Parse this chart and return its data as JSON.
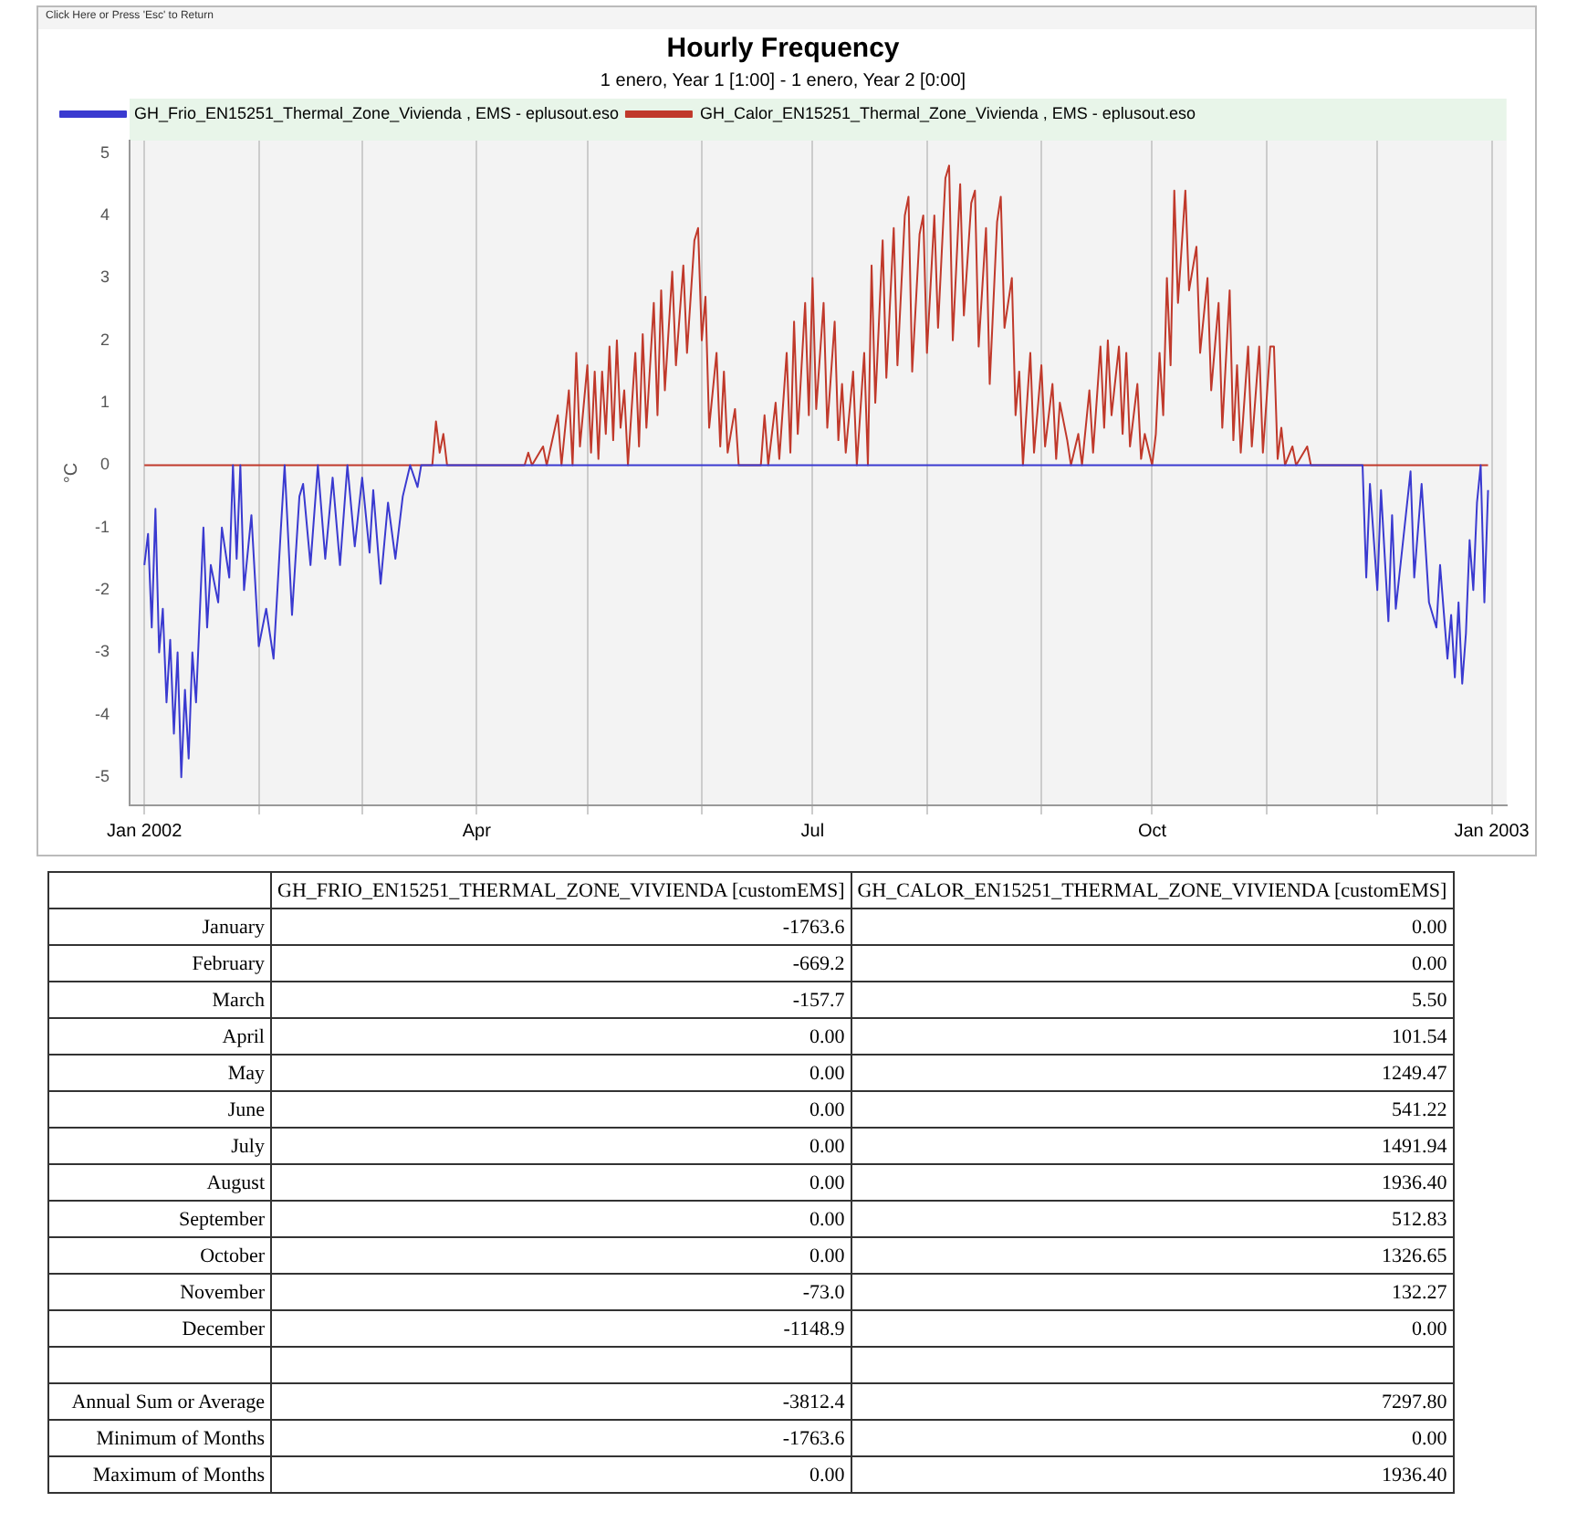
{
  "chart_data": [
    {
      "type": "line",
      "title": "Hourly Frequency",
      "subtitle": "1 enero, Year 1 [1:00] - 1 enero, Year 2 [0:00]",
      "ylabel": "°C",
      "annotations": [
        "Click Here or Press 'Esc' to Return"
      ],
      "xlim": [
        "2001-12-28",
        "2003-01-05"
      ],
      "ylim": [
        -5.45,
        5.2
      ],
      "yticks": [
        -5,
        -4,
        -3,
        -2,
        -1,
        0,
        1,
        2,
        3,
        4,
        5
      ],
      "xticks": [
        {
          "value": "2002-01-01",
          "label": "Jan 2002"
        },
        {
          "value": "2002-02-01",
          "label": null
        },
        {
          "value": "2002-03-01",
          "label": null
        },
        {
          "value": "2002-04-01",
          "label": "Apr"
        },
        {
          "value": "2002-05-01",
          "label": null
        },
        {
          "value": "2002-06-01",
          "label": null
        },
        {
          "value": "2002-07-01",
          "label": "Jul"
        },
        {
          "value": "2002-08-01",
          "label": null
        },
        {
          "value": "2002-09-01",
          "label": null
        },
        {
          "value": "2002-10-01",
          "label": "Oct"
        },
        {
          "value": "2002-11-01",
          "label": null
        },
        {
          "value": "2002-12-01",
          "label": null
        },
        {
          "value": "2003-01-01",
          "label": "Jan 2003"
        }
      ],
      "grid": "x",
      "legend": "top",
      "marker": "none",
      "line_style": "solid",
      "series": [
        {
          "name": "GH_Frio_EN15251_Thermal_Zone_Vivienda , EMS - eplusout.eso",
          "color": "#3a3ad0",
          "x": [
            "2002-01-01",
            "2002-01-02",
            "2002-01-03",
            "2002-01-04",
            "2002-01-05",
            "2002-01-06",
            "2002-01-07",
            "2002-01-08",
            "2002-01-09",
            "2002-01-10",
            "2002-01-11",
            "2002-01-12",
            "2002-01-13",
            "2002-01-14",
            "2002-01-15",
            "2002-01-17",
            "2002-01-18",
            "2002-01-19",
            "2002-01-21",
            "2002-01-22",
            "2002-01-24",
            "2002-01-25",
            "2002-01-26",
            "2002-01-27",
            "2002-01-28",
            "2002-01-30",
            "2002-02-01",
            "2002-02-03",
            "2002-02-05",
            "2002-02-07",
            "2002-02-08",
            "2002-02-10",
            "2002-02-12",
            "2002-02-13",
            "2002-02-15",
            "2002-02-17",
            "2002-02-19",
            "2002-02-21",
            "2002-02-23",
            "2002-02-25",
            "2002-02-27",
            "2002-03-01",
            "2002-03-03",
            "2002-03-04",
            "2002-03-06",
            "2002-03-08",
            "2002-03-10",
            "2002-03-12",
            "2002-03-14",
            "2002-03-16",
            "2002-03-17",
            "2002-11-27",
            "2002-11-28",
            "2002-11-29",
            "2002-12-01",
            "2002-12-02",
            "2002-12-04",
            "2002-12-05",
            "2002-12-06",
            "2002-12-08",
            "2002-12-10",
            "2002-12-11",
            "2002-12-13",
            "2002-12-15",
            "2002-12-17",
            "2002-12-18",
            "2002-12-20",
            "2002-12-21",
            "2002-12-22",
            "2002-12-23",
            "2002-12-24",
            "2002-12-25",
            "2002-12-26",
            "2002-12-27",
            "2002-12-28",
            "2002-12-29",
            "2002-12-30",
            "2002-12-31"
          ],
          "values": [
            -1.6,
            -1.1,
            -2.6,
            -0.7,
            -3.0,
            -2.3,
            -3.8,
            -2.8,
            -4.3,
            -3.0,
            -5.0,
            -3.6,
            -4.7,
            -3.0,
            -3.8,
            -1.0,
            -2.6,
            -1.6,
            -2.2,
            -1.0,
            -1.8,
            0,
            -1.5,
            0,
            -2.0,
            -0.8,
            -2.9,
            -2.3,
            -3.1,
            -1.0,
            0,
            -2.4,
            -0.5,
            -0.3,
            -1.6,
            0,
            -1.5,
            -0.2,
            -1.6,
            0,
            -1.3,
            -0.2,
            -1.4,
            -0.4,
            -1.9,
            -0.6,
            -1.5,
            -0.5,
            0,
            -0.35,
            0,
            0,
            -1.8,
            -0.3,
            -2.0,
            -0.4,
            -2.5,
            -0.8,
            -2.3,
            -1.2,
            -0.1,
            -1.8,
            -0.3,
            -2.2,
            -2.6,
            -1.6,
            -3.1,
            -2.4,
            -3.4,
            -2.2,
            -3.5,
            -2.7,
            -1.2,
            -2.0,
            -0.6,
            0,
            -2.2,
            -0.4
          ]
        },
        {
          "name": "GH_Calor_EN15251_Thermal_Zone_Vivienda , EMS - eplusout.eso",
          "color": "#c0392b",
          "x": [
            "2002-01-01",
            "2002-03-20",
            "2002-03-21",
            "2002-03-22",
            "2002-03-23",
            "2002-03-24",
            "2002-04-14",
            "2002-04-15",
            "2002-04-16",
            "2002-04-19",
            "2002-04-20",
            "2002-04-23",
            "2002-04-24",
            "2002-04-26",
            "2002-04-27",
            "2002-04-28",
            "2002-04-29",
            "2002-05-01",
            "2002-05-02",
            "2002-05-03",
            "2002-05-04",
            "2002-05-05",
            "2002-05-06",
            "2002-05-07",
            "2002-05-08",
            "2002-05-09",
            "2002-05-10",
            "2002-05-11",
            "2002-05-12",
            "2002-05-14",
            "2002-05-15",
            "2002-05-16",
            "2002-05-17",
            "2002-05-19",
            "2002-05-20",
            "2002-05-21",
            "2002-05-22",
            "2002-05-24",
            "2002-05-25",
            "2002-05-27",
            "2002-05-28",
            "2002-05-30",
            "2002-05-31",
            "2002-06-01",
            "2002-06-02",
            "2002-06-03",
            "2002-06-05",
            "2002-06-06",
            "2002-06-07",
            "2002-06-08",
            "2002-06-10",
            "2002-06-11",
            "2002-06-17",
            "2002-06-18",
            "2002-06-19",
            "2002-06-21",
            "2002-06-22",
            "2002-06-24",
            "2002-06-25",
            "2002-06-26",
            "2002-06-27",
            "2002-06-29",
            "2002-06-30",
            "2002-07-01",
            "2002-07-02",
            "2002-07-04",
            "2002-07-05",
            "2002-07-07",
            "2002-07-08",
            "2002-07-09",
            "2002-07-10",
            "2002-07-12",
            "2002-07-13",
            "2002-07-15",
            "2002-07-16",
            "2002-07-17",
            "2002-07-18",
            "2002-07-20",
            "2002-07-21",
            "2002-07-23",
            "2002-07-24",
            "2002-07-26",
            "2002-07-27",
            "2002-07-28",
            "2002-07-30",
            "2002-07-31",
            "2002-08-01",
            "2002-08-03",
            "2002-08-04",
            "2002-08-06",
            "2002-08-07",
            "2002-08-08",
            "2002-08-10",
            "2002-08-11",
            "2002-08-13",
            "2002-08-14",
            "2002-08-15",
            "2002-08-17",
            "2002-08-18",
            "2002-08-20",
            "2002-08-21",
            "2002-08-22",
            "2002-08-24",
            "2002-08-25",
            "2002-08-26",
            "2002-08-27",
            "2002-08-29",
            "2002-08-30",
            "2002-09-01",
            "2002-09-02",
            "2002-09-04",
            "2002-09-05",
            "2002-09-06",
            "2002-09-08",
            "2002-09-09",
            "2002-09-11",
            "2002-09-12",
            "2002-09-14",
            "2002-09-15",
            "2002-09-17",
            "2002-09-18",
            "2002-09-19",
            "2002-09-20",
            "2002-09-22",
            "2002-09-23",
            "2002-09-24",
            "2002-09-25",
            "2002-09-27",
            "2002-09-28",
            "2002-09-29",
            "2002-10-01",
            "2002-10-02",
            "2002-10-03",
            "2002-10-04",
            "2002-10-05",
            "2002-10-06",
            "2002-10-07",
            "2002-10-08",
            "2002-10-10",
            "2002-10-11",
            "2002-10-13",
            "2002-10-14",
            "2002-10-16",
            "2002-10-17",
            "2002-10-19",
            "2002-10-20",
            "2002-10-22",
            "2002-10-23",
            "2002-10-24",
            "2002-10-25",
            "2002-10-27",
            "2002-10-28",
            "2002-10-30",
            "2002-10-31",
            "2002-11-02",
            "2002-11-03",
            "2002-11-04",
            "2002-11-05",
            "2002-11-06",
            "2002-11-08",
            "2002-11-09",
            "2002-11-12",
            "2002-11-13",
            "2002-12-31"
          ],
          "values": [
            0,
            0,
            0.7,
            0.2,
            0.5,
            0,
            0,
            0.2,
            0,
            0.3,
            0,
            0.8,
            0,
            1.2,
            0,
            1.8,
            0.3,
            1.6,
            0.2,
            1.5,
            0.1,
            1.5,
            0.5,
            1.9,
            0.4,
            2.0,
            0.6,
            1.2,
            0,
            1.8,
            0.3,
            2.1,
            0.6,
            2.6,
            0.8,
            2.8,
            1.2,
            3.1,
            1.6,
            3.2,
            1.8,
            3.6,
            3.8,
            2.0,
            2.7,
            0.6,
            1.8,
            0.3,
            1.5,
            0.2,
            0.9,
            0,
            0,
            0.8,
            0,
            1.0,
            0.1,
            1.8,
            0.2,
            2.3,
            0.5,
            2.6,
            0.8,
            3.0,
            0.9,
            2.6,
            0.6,
            2.3,
            0.4,
            1.3,
            0.2,
            1.5,
            0,
            1.8,
            0,
            3.2,
            1.0,
            3.6,
            1.4,
            3.8,
            1.6,
            4.0,
            4.3,
            1.5,
            3.7,
            4.0,
            1.8,
            4.0,
            2.2,
            4.6,
            4.8,
            2.0,
            4.5,
            2.4,
            4.2,
            4.4,
            1.9,
            3.8,
            1.3,
            3.9,
            4.3,
            2.2,
            3.0,
            0.8,
            1.5,
            0,
            1.8,
            0.2,
            1.6,
            0.3,
            1.3,
            0.1,
            1.0,
            0.4,
            0,
            0.5,
            0,
            1.2,
            0.2,
            1.9,
            0.6,
            2.0,
            0.8,
            1.9,
            0.5,
            1.8,
            0.3,
            1.3,
            0.1,
            0.5,
            0,
            0.5,
            1.8,
            0.8,
            3.0,
            1.6,
            4.4,
            2.6,
            4.4,
            2.8,
            3.5,
            1.8,
            3.0,
            1.2,
            2.6,
            0.6,
            2.8,
            0.4,
            1.6,
            0.2,
            1.9,
            0.3,
            1.9,
            0.2,
            1.9,
            1.9,
            0.1,
            0.6,
            0,
            0.3,
            0,
            0.3,
            0,
            0
          ]
        }
      ]
    },
    {
      "type": "other",
      "categories": [
        "January",
        "February",
        "March",
        "April",
        "May",
        "June",
        "July",
        "August",
        "September",
        "October",
        "November",
        "December",
        null,
        "Annual Sum or Average",
        "Minimum of Months",
        "Maximum of Months"
      ],
      "series": [
        {
          "name": "GH_FRIO_EN15251_THERMAL_ZONE_VIVIENDA [customEMS]",
          "values": [
            -1763.6,
            -669.2,
            -157.7,
            0,
            0,
            0,
            0,
            0,
            0,
            0,
            -73.0,
            -1148.9,
            null,
            -3812.4,
            -1763.6,
            0
          ],
          "value_labels": [
            "-1763.6",
            "-669.2",
            "-157.7",
            "0.00",
            "0.00",
            "0.00",
            "0.00",
            "0.00",
            "0.00",
            "0.00",
            "-73.0",
            "-1148.9",
            null,
            "-3812.4",
            "-1763.6",
            "0.00"
          ]
        },
        {
          "name": "GH_CALOR_EN15251_THERMAL_ZONE_VIVIENDA [customEMS]",
          "values": [
            0,
            0,
            5.5,
            101.54,
            1249.47,
            541.22,
            1491.94,
            1936.4,
            512.83,
            1326.65,
            132.27,
            0,
            null,
            7297.8,
            0,
            1936.4
          ],
          "value_labels": [
            "0.00",
            "0.00",
            "5.50",
            "101.54",
            "1249.47",
            "541.22",
            "1491.94",
            "1936.40",
            "512.83",
            "1326.65",
            "132.27",
            "0.00",
            null,
            "7297.80",
            "0.00",
            "1936.40"
          ]
        }
      ]
    }
  ]
}
